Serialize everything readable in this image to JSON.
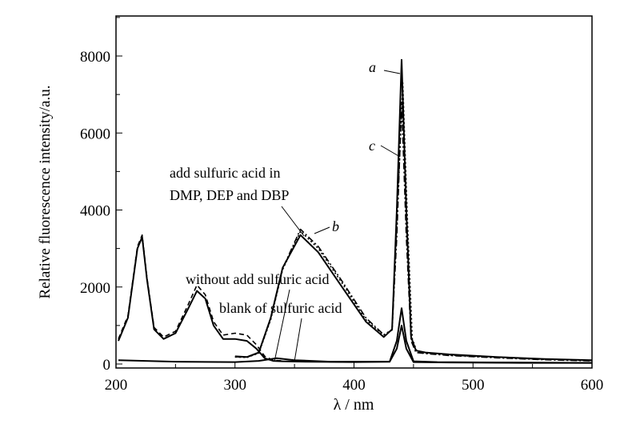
{
  "chart_data": {
    "type": "line",
    "title": "",
    "xlabel": "λ / nm",
    "ylabel": "Relative fluorescence intensity/a.u.",
    "xlim": [
      200,
      600
    ],
    "ylim": [
      0,
      9000
    ],
    "xticks": [
      200,
      300,
      400,
      500,
      600
    ],
    "yticks": [
      0,
      2000,
      4000,
      6000,
      8000
    ],
    "grid": false,
    "series": [
      {
        "name": "a",
        "style": "solid",
        "x": [
          300,
          310,
          320,
          330,
          340,
          355,
          370,
          390,
          410,
          425,
          432,
          436,
          440,
          444,
          448,
          452,
          460,
          480,
          520,
          560,
          600
        ],
        "y": [
          200,
          180,
          300,
          1200,
          2500,
          3350,
          2900,
          2000,
          1100,
          700,
          900,
          4000,
          7900,
          4000,
          700,
          350,
          300,
          250,
          180,
          130,
          100
        ]
      },
      {
        "name": "c",
        "style": "dotted",
        "x": [
          300,
          310,
          320,
          330,
          340,
          355,
          370,
          390,
          410,
          425,
          432,
          436,
          441,
          445,
          449,
          453,
          460,
          480,
          520,
          560,
          600
        ],
        "y": [
          180,
          170,
          280,
          1150,
          2450,
          3450,
          3000,
          2100,
          1150,
          750,
          900,
          3600,
          7300,
          3700,
          650,
          320,
          280,
          230,
          170,
          120,
          90
        ]
      },
      {
        "name": "b",
        "style": "dashdot",
        "x": [
          300,
          310,
          320,
          330,
          340,
          355,
          370,
          390,
          410,
          425,
          432,
          436,
          440,
          444,
          448,
          452,
          460,
          480,
          520,
          560,
          600
        ],
        "y": [
          190,
          175,
          290,
          1180,
          2480,
          3500,
          3050,
          2150,
          1200,
          760,
          880,
          3300,
          6800,
          3300,
          600,
          300,
          270,
          220,
          160,
          110,
          80
        ]
      },
      {
        "name": "without add sulfuric acid",
        "style": "solid",
        "x": [
          202,
          210,
          218,
          222,
          226,
          232,
          240,
          250,
          260,
          268,
          275,
          282,
          290,
          300,
          310,
          318,
          325,
          332,
          340,
          360,
          400,
          430,
          436,
          440,
          444,
          450,
          470,
          520,
          600
        ],
        "y": [
          600,
          1200,
          3000,
          3300,
          2200,
          900,
          650,
          800,
          1400,
          1900,
          1700,
          1000,
          650,
          650,
          600,
          400,
          150,
          80,
          70,
          60,
          50,
          60,
          600,
          1450,
          600,
          70,
          50,
          40,
          30
        ]
      },
      {
        "name": "without add sulfuric acid (dashed)",
        "style": "dashed",
        "x": [
          202,
          210,
          218,
          222,
          226,
          232,
          240,
          250,
          260,
          268,
          275,
          282,
          290,
          300,
          310,
          318,
          325,
          332,
          340
        ],
        "y": [
          650,
          1250,
          3050,
          3350,
          2250,
          950,
          700,
          850,
          1500,
          2050,
          1800,
          1100,
          750,
          800,
          750,
          500,
          200,
          100,
          80
        ]
      },
      {
        "name": "blank of sulfuric acid",
        "style": "solid",
        "x": [
          202,
          250,
          300,
          320,
          335,
          350,
          380,
          430,
          436,
          440,
          444,
          450,
          480,
          540,
          600
        ],
        "y": [
          100,
          60,
          50,
          80,
          150,
          100,
          60,
          60,
          400,
          1000,
          400,
          50,
          40,
          30,
          30
        ]
      }
    ],
    "annotations": [
      {
        "text": "a"
      },
      {
        "text": "b"
      },
      {
        "text": "c"
      },
      {
        "text": "add sulfuric acid in"
      },
      {
        "text": "DMP, DEP and DBP"
      },
      {
        "text": "without add sulfuric acid"
      },
      {
        "text": "blank of sulfuric acid"
      }
    ]
  }
}
